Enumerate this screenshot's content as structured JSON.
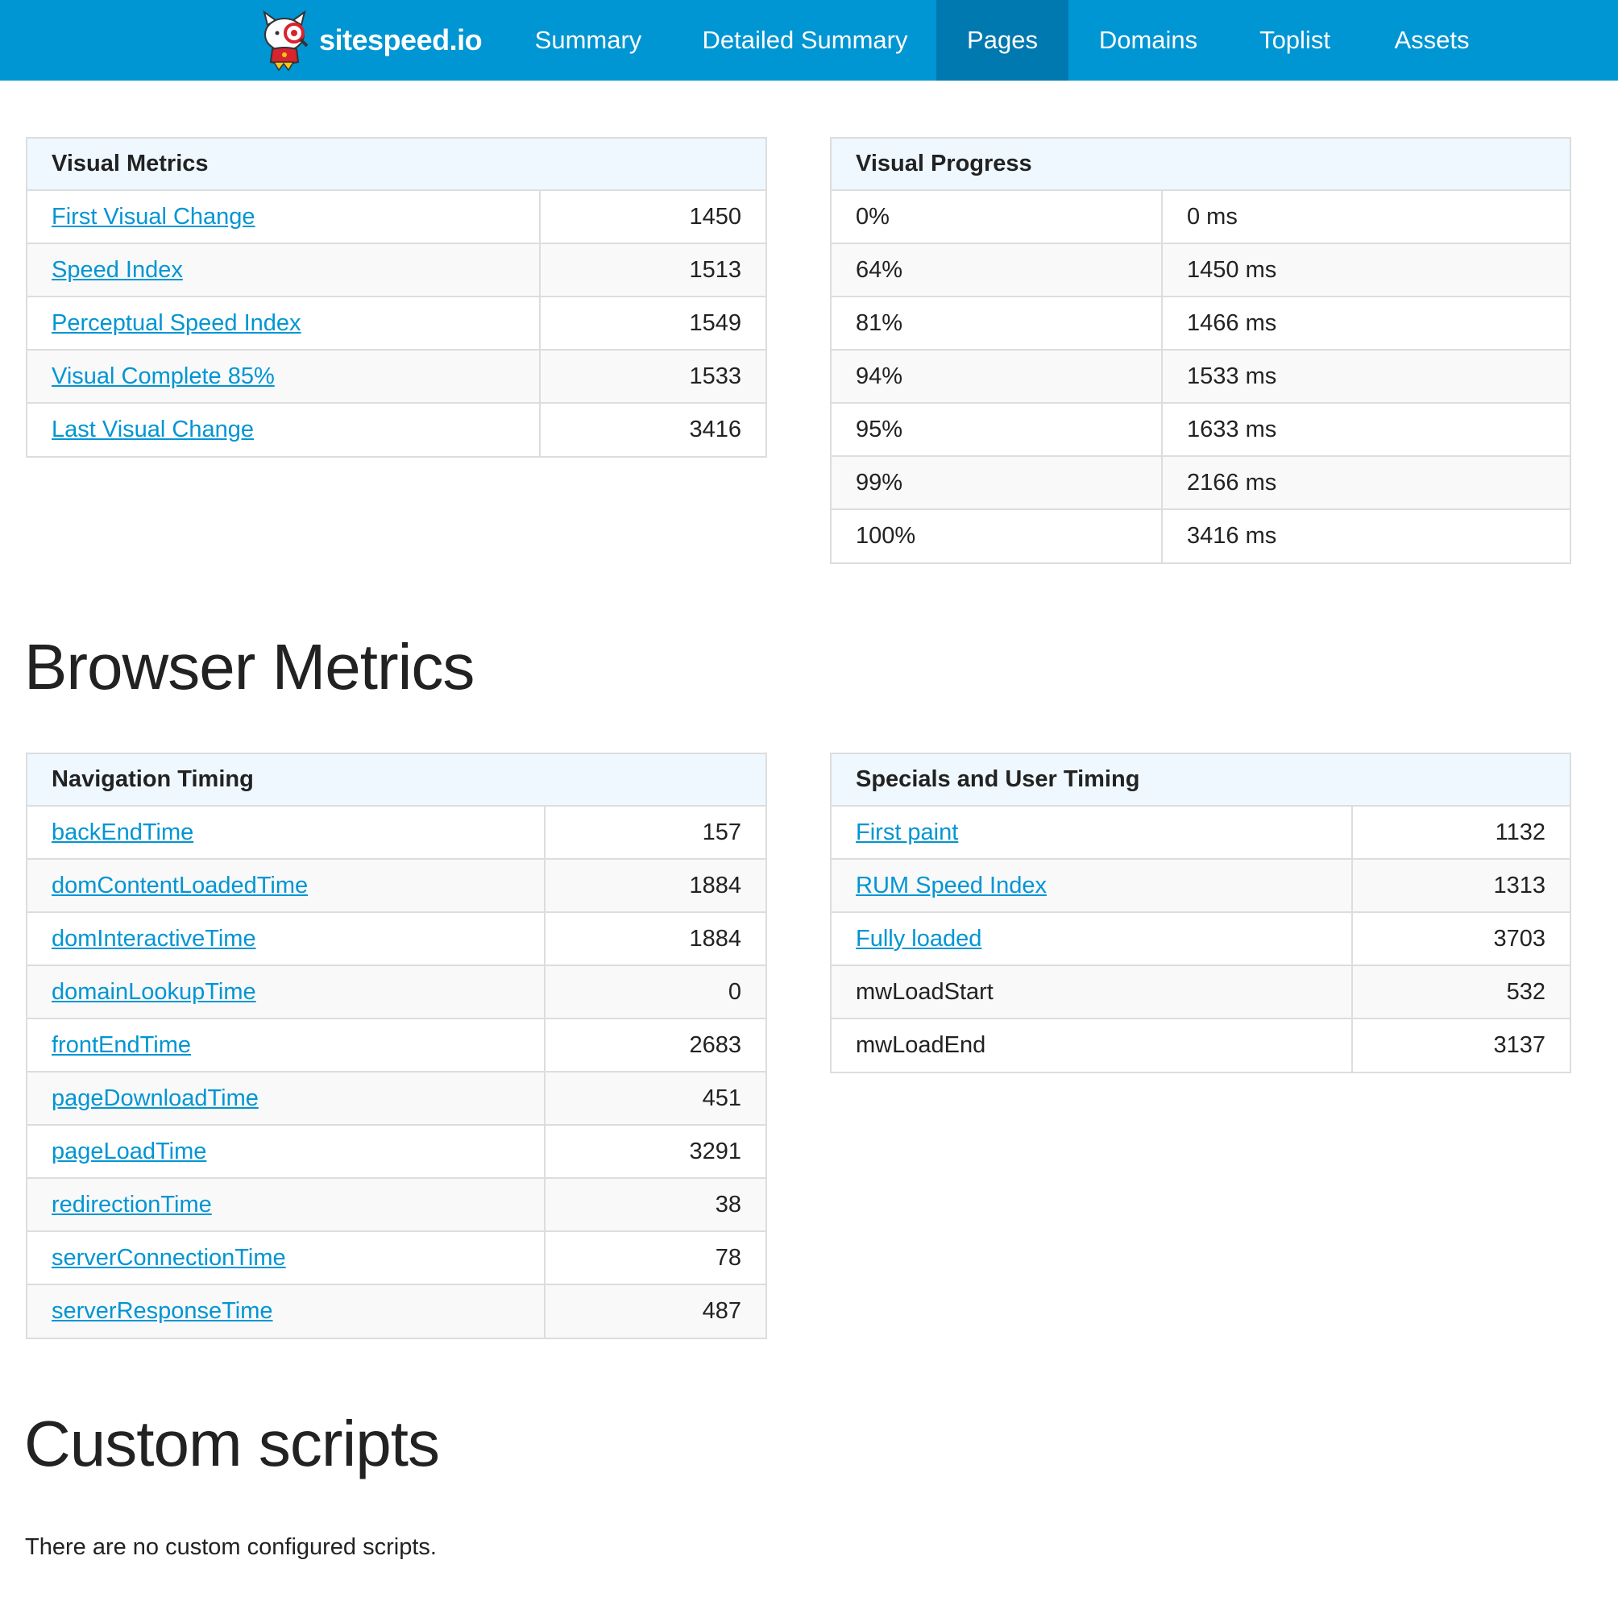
{
  "nav": {
    "brand": "sitespeed.io",
    "items": [
      {
        "label": "Summary",
        "active": false
      },
      {
        "label": "Detailed Summary",
        "active": false
      },
      {
        "label": "Pages",
        "active": true
      },
      {
        "label": "Domains",
        "active": false
      },
      {
        "label": "Toplist",
        "active": false
      },
      {
        "label": "Assets",
        "active": false
      }
    ],
    "colors": {
      "bar": "#0095d3",
      "active": "#0079b0"
    }
  },
  "visual_metrics": {
    "title": "Visual Metrics",
    "rows": [
      {
        "label": "First Visual Change",
        "value": "1450"
      },
      {
        "label": "Speed Index",
        "value": "1513"
      },
      {
        "label": "Perceptual Speed Index",
        "value": "1549"
      },
      {
        "label": "Visual Complete 85%",
        "value": "1533"
      },
      {
        "label": "Last Visual Change",
        "value": "3416"
      }
    ]
  },
  "visual_progress": {
    "title": "Visual Progress",
    "rows": [
      {
        "percent": "0%",
        "time": "0 ms"
      },
      {
        "percent": "64%",
        "time": "1450 ms"
      },
      {
        "percent": "81%",
        "time": "1466 ms"
      },
      {
        "percent": "94%",
        "time": "1533 ms"
      },
      {
        "percent": "95%",
        "time": "1633 ms"
      },
      {
        "percent": "99%",
        "time": "2166 ms"
      },
      {
        "percent": "100%",
        "time": "3416 ms"
      }
    ]
  },
  "browser_metrics": {
    "heading": "Browser Metrics",
    "navigation_timing": {
      "title": "Navigation Timing",
      "rows": [
        {
          "label": "backEndTime",
          "value": "157"
        },
        {
          "label": "domContentLoadedTime",
          "value": "1884"
        },
        {
          "label": "domInteractiveTime",
          "value": "1884"
        },
        {
          "label": "domainLookupTime",
          "value": "0"
        },
        {
          "label": "frontEndTime",
          "value": "2683"
        },
        {
          "label": "pageDownloadTime",
          "value": "451"
        },
        {
          "label": "pageLoadTime",
          "value": "3291"
        },
        {
          "label": "redirectionTime",
          "value": "38"
        },
        {
          "label": "serverConnectionTime",
          "value": "78"
        },
        {
          "label": "serverResponseTime",
          "value": "487"
        }
      ]
    },
    "specials": {
      "title": "Specials and User Timing",
      "rows": [
        {
          "label": "First paint",
          "value": "1132",
          "link": true
        },
        {
          "label": "RUM Speed Index",
          "value": "1313",
          "link": true
        },
        {
          "label": "Fully loaded",
          "value": "3703",
          "link": true
        },
        {
          "label": "mwLoadStart",
          "value": "532",
          "link": false
        },
        {
          "label": "mwLoadEnd",
          "value": "3137",
          "link": false
        }
      ]
    }
  },
  "custom_scripts": {
    "heading": "Custom scripts",
    "message": "There are no custom configured scripts."
  }
}
